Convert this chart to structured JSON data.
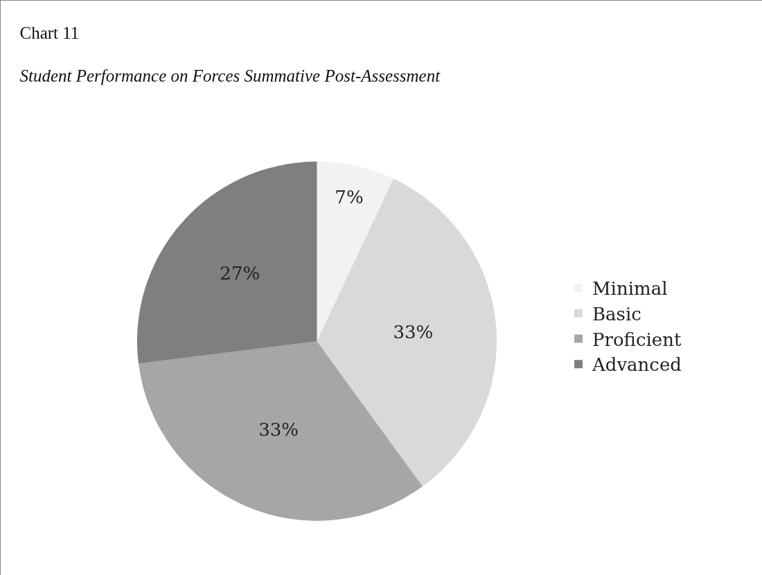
{
  "chart_data": {
    "type": "pie",
    "title": "Chart 11",
    "subtitle": "Student Performance on Forces Summative Post-Assessment",
    "categories": [
      "Minimal",
      "Basic",
      "Proficient",
      "Advanced"
    ],
    "values": [
      7,
      33,
      33,
      27
    ],
    "value_labels": [
      "7%",
      "33%",
      "33%",
      "27%"
    ],
    "colors": [
      "#f2f2f2",
      "#d9d9d9",
      "#a6a6a6",
      "#7f7f7f"
    ],
    "legend": "right"
  }
}
